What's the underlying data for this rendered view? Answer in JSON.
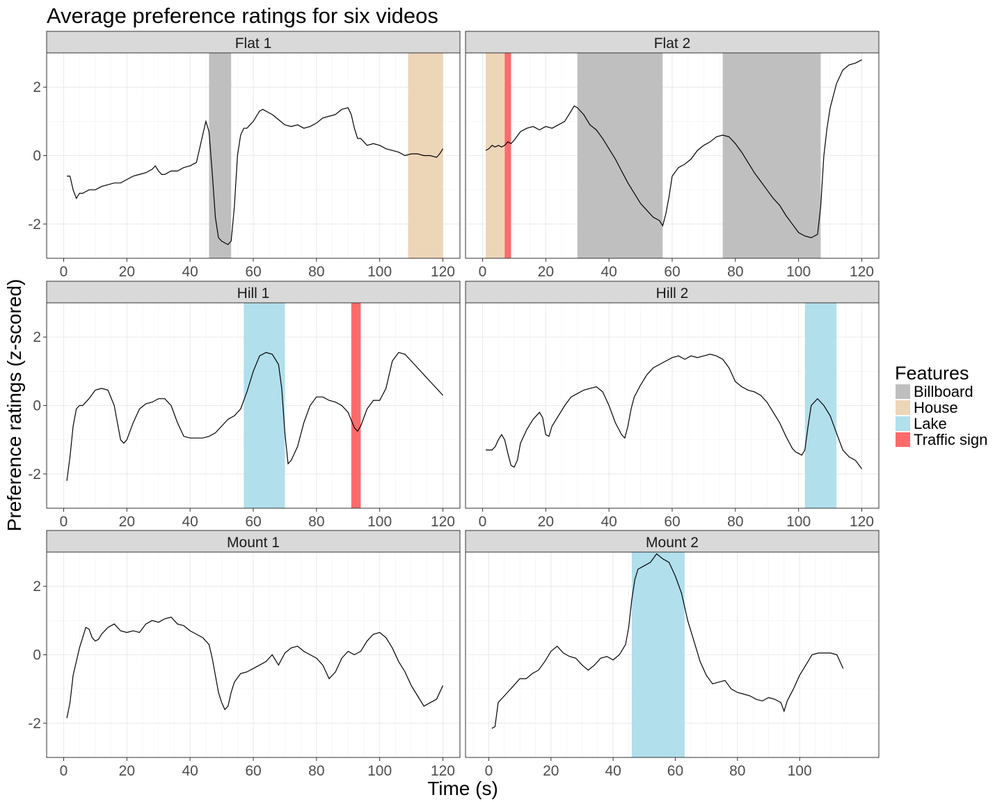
{
  "chart_data": {
    "type": "line",
    "title": "Average preference ratings for six videos",
    "xlabel": "Time (s)",
    "ylabel": "Preference ratings (z-scored)",
    "grid": true,
    "ylim": [
      -3.0,
      3.0
    ],
    "y_ticks": [
      -2,
      0,
      2
    ],
    "legend": {
      "title": "Features",
      "placement": "right",
      "items": [
        {
          "label": "Billboard",
          "color": "#bfbfbf"
        },
        {
          "label": "House",
          "color": "#edd5b8"
        },
        {
          "label": "Lake",
          "color": "#b1dfec"
        },
        {
          "label": "Traffic sign",
          "color": "#ff6b6b"
        }
      ]
    },
    "panels": [
      {
        "name": "Flat 1",
        "xlim": [
          0,
          120
        ],
        "x_ticks": [
          0,
          20,
          40,
          60,
          80,
          100,
          120
        ],
        "features": [
          {
            "feature": "Billboard",
            "start": 46,
            "end": 53
          },
          {
            "feature": "House",
            "start": 109,
            "end": 120
          }
        ],
        "x": [
          1,
          2,
          3,
          4,
          5,
          6,
          8,
          10,
          12,
          14,
          16,
          18,
          20,
          22,
          24,
          26,
          28,
          29,
          30,
          31,
          32,
          34,
          36,
          38,
          40,
          42,
          43,
          44,
          45,
          46,
          47,
          48,
          49,
          50,
          51,
          52,
          53,
          54,
          55,
          56,
          57,
          58,
          60,
          62,
          63,
          64,
          66,
          68,
          70,
          72,
          74,
          76,
          78,
          80,
          82,
          84,
          86,
          88,
          90,
          91,
          92,
          93,
          94,
          96,
          98,
          100,
          102,
          104,
          106,
          108,
          110,
          112,
          114,
          116,
          118,
          119,
          120
        ],
        "y": [
          -0.6,
          -0.6,
          -1.0,
          -1.25,
          -1.1,
          -1.1,
          -1.0,
          -1.0,
          -0.9,
          -0.85,
          -0.8,
          -0.8,
          -0.7,
          -0.6,
          -0.55,
          -0.5,
          -0.4,
          -0.3,
          -0.45,
          -0.55,
          -0.55,
          -0.45,
          -0.45,
          -0.35,
          -0.3,
          -0.2,
          0.2,
          0.6,
          1.0,
          0.7,
          -0.5,
          -1.8,
          -2.4,
          -2.5,
          -2.55,
          -2.6,
          -2.5,
          -1.5,
          0.0,
          0.6,
          0.8,
          0.8,
          1.0,
          1.3,
          1.35,
          1.3,
          1.2,
          1.05,
          0.9,
          0.85,
          0.9,
          0.8,
          0.85,
          0.95,
          1.1,
          1.15,
          1.2,
          1.35,
          1.4,
          1.2,
          0.8,
          0.5,
          0.5,
          0.3,
          0.35,
          0.3,
          0.2,
          0.15,
          0.1,
          0.0,
          0.05,
          0.05,
          0.0,
          0.0,
          -0.05,
          0.05,
          0.2
        ]
      },
      {
        "name": "Flat 2",
        "xlim": [
          0,
          120
        ],
        "x_ticks": [
          0,
          20,
          40,
          60,
          80,
          100,
          120
        ],
        "features": [
          {
            "feature": "House",
            "start": 1,
            "end": 7
          },
          {
            "feature": "Traffic sign",
            "start": 7,
            "end": 9
          },
          {
            "feature": "Billboard",
            "start": 30,
            "end": 57
          },
          {
            "feature": "Billboard",
            "start": 76,
            "end": 107
          }
        ],
        "x": [
          1,
          2,
          3,
          4,
          5,
          6,
          7,
          8,
          9,
          10,
          12,
          14,
          16,
          18,
          20,
          22,
          24,
          26,
          28,
          29,
          30,
          31,
          32,
          34,
          36,
          38,
          40,
          42,
          44,
          46,
          48,
          50,
          52,
          54,
          56,
          57,
          58,
          59,
          60,
          62,
          64,
          66,
          68,
          70,
          72,
          74,
          76,
          78,
          80,
          82,
          84,
          86,
          88,
          90,
          92,
          94,
          96,
          98,
          100,
          102,
          104,
          106,
          107,
          108,
          109,
          110,
          112,
          114,
          116,
          118,
          120
        ],
        "y": [
          0.15,
          0.2,
          0.3,
          0.25,
          0.3,
          0.25,
          0.3,
          0.4,
          0.35,
          0.45,
          0.7,
          0.8,
          0.85,
          0.75,
          0.85,
          0.8,
          0.9,
          1.0,
          1.3,
          1.45,
          1.4,
          1.3,
          1.2,
          0.9,
          0.75,
          0.5,
          0.2,
          -0.1,
          -0.45,
          -0.8,
          -1.1,
          -1.4,
          -1.6,
          -1.8,
          -1.9,
          -2.05,
          -1.7,
          -1.2,
          -0.6,
          -0.35,
          -0.25,
          -0.1,
          0.15,
          0.3,
          0.4,
          0.55,
          0.6,
          0.55,
          0.35,
          0.1,
          -0.2,
          -0.5,
          -0.75,
          -1.0,
          -1.25,
          -1.45,
          -1.75,
          -2.0,
          -2.25,
          -2.35,
          -2.4,
          -2.3,
          -1.5,
          0.0,
          0.8,
          1.4,
          2.1,
          2.5,
          2.65,
          2.7,
          2.8
        ]
      },
      {
        "name": "Hill 1",
        "xlim": [
          0,
          120
        ],
        "x_ticks": [
          0,
          20,
          40,
          60,
          80,
          100,
          120
        ],
        "features": [
          {
            "feature": "Lake",
            "start": 57,
            "end": 70
          },
          {
            "feature": "Traffic sign",
            "start": 91,
            "end": 94
          }
        ],
        "x": [
          1,
          2,
          3,
          4,
          5,
          6,
          8,
          10,
          12,
          14,
          16,
          17,
          18,
          19,
          20,
          22,
          24,
          26,
          28,
          30,
          32,
          34,
          36,
          38,
          40,
          42,
          44,
          46,
          48,
          50,
          52,
          54,
          56,
          58,
          60,
          62,
          64,
          66,
          68,
          69,
          70,
          71,
          72,
          74,
          76,
          78,
          80,
          82,
          84,
          86,
          88,
          90,
          92,
          93,
          94,
          96,
          98,
          100,
          102,
          104,
          106,
          108,
          110,
          112,
          114,
          116,
          118,
          120
        ],
        "y": [
          -2.2,
          -1.5,
          -0.6,
          -0.1,
          0.0,
          0.0,
          0.2,
          0.45,
          0.5,
          0.45,
          0.0,
          -0.5,
          -1.0,
          -1.1,
          -1.0,
          -0.5,
          -0.1,
          0.05,
          0.1,
          0.2,
          0.2,
          0.0,
          -0.5,
          -0.9,
          -0.95,
          -0.95,
          -0.95,
          -0.9,
          -0.8,
          -0.6,
          -0.4,
          -0.3,
          -0.1,
          0.4,
          1.0,
          1.45,
          1.55,
          1.5,
          1.2,
          0.5,
          -0.8,
          -1.7,
          -1.6,
          -1.2,
          -0.5,
          0.0,
          0.25,
          0.25,
          0.15,
          0.1,
          0.0,
          -0.2,
          -0.65,
          -0.75,
          -0.6,
          -0.1,
          0.15,
          0.15,
          0.5,
          1.3,
          1.55,
          1.5,
          1.3,
          1.1,
          0.9,
          0.7,
          0.5,
          0.3
        ]
      },
      {
        "name": "Hill 2",
        "xlim": [
          0,
          120
        ],
        "x_ticks": [
          0,
          20,
          40,
          60,
          80,
          100,
          120
        ],
        "features": [
          {
            "feature": "Lake",
            "start": 102,
            "end": 112
          }
        ],
        "x": [
          1,
          2,
          3,
          4,
          5,
          6,
          7,
          8,
          9,
          10,
          11,
          12,
          14,
          16,
          18,
          19,
          20,
          21,
          22,
          24,
          26,
          28,
          30,
          32,
          34,
          36,
          38,
          40,
          42,
          44,
          45,
          46,
          47,
          48,
          50,
          52,
          54,
          56,
          58,
          60,
          62,
          64,
          66,
          68,
          70,
          72,
          74,
          76,
          78,
          80,
          82,
          84,
          86,
          88,
          90,
          92,
          94,
          96,
          98,
          99,
          100,
          101,
          102,
          103,
          104,
          106,
          108,
          110,
          112,
          114,
          116,
          118,
          120
        ],
        "y": [
          -1.3,
          -1.3,
          -1.3,
          -1.2,
          -1.0,
          -0.85,
          -1.0,
          -1.4,
          -1.75,
          -1.8,
          -1.6,
          -1.1,
          -0.7,
          -0.4,
          -0.2,
          -0.35,
          -0.85,
          -0.9,
          -0.6,
          -0.3,
          0.0,
          0.25,
          0.35,
          0.45,
          0.5,
          0.55,
          0.4,
          0.0,
          -0.5,
          -0.85,
          -0.95,
          -0.6,
          -0.1,
          0.25,
          0.6,
          0.9,
          1.1,
          1.2,
          1.3,
          1.4,
          1.45,
          1.35,
          1.45,
          1.4,
          1.45,
          1.5,
          1.45,
          1.35,
          1.1,
          0.7,
          0.55,
          0.45,
          0.4,
          0.3,
          0.1,
          -0.2,
          -0.5,
          -0.9,
          -1.25,
          -1.35,
          -1.4,
          -1.45,
          -1.3,
          -0.6,
          0.0,
          0.2,
          0.0,
          -0.3,
          -0.8,
          -1.3,
          -1.5,
          -1.6,
          -1.85
        ]
      },
      {
        "name": "Mount 1",
        "xlim": [
          0,
          120
        ],
        "x_ticks": [
          0,
          20,
          40,
          60,
          80,
          100,
          120
        ],
        "features": [],
        "x": [
          1,
          2,
          3,
          4,
          5,
          6,
          7,
          8,
          9,
          10,
          11,
          12,
          14,
          16,
          18,
          20,
          22,
          24,
          26,
          28,
          30,
          32,
          34,
          36,
          38,
          40,
          42,
          44,
          46,
          47,
          48,
          49,
          50,
          51,
          52,
          53,
          54,
          56,
          58,
          60,
          62,
          64,
          66,
          68,
          70,
          72,
          74,
          76,
          78,
          80,
          82,
          84,
          86,
          88,
          90,
          92,
          94,
          96,
          98,
          100,
          102,
          104,
          106,
          108,
          110,
          112,
          114,
          116,
          118,
          120
        ],
        "y": [
          -1.85,
          -1.4,
          -0.6,
          -0.2,
          0.2,
          0.5,
          0.8,
          0.75,
          0.5,
          0.4,
          0.45,
          0.6,
          0.8,
          0.9,
          0.7,
          0.65,
          0.7,
          0.65,
          0.9,
          1.0,
          0.95,
          1.05,
          1.1,
          0.9,
          0.85,
          0.7,
          0.6,
          0.5,
          0.3,
          -0.1,
          -0.6,
          -1.1,
          -1.4,
          -1.6,
          -1.5,
          -1.1,
          -0.8,
          -0.55,
          -0.5,
          -0.4,
          -0.3,
          -0.2,
          0.0,
          -0.3,
          0.05,
          0.2,
          0.25,
          0.1,
          0.0,
          -0.1,
          -0.3,
          -0.7,
          -0.5,
          -0.1,
          0.1,
          0.0,
          0.1,
          0.4,
          0.6,
          0.65,
          0.5,
          0.2,
          -0.2,
          -0.5,
          -0.9,
          -1.2,
          -1.5,
          -1.4,
          -1.3,
          -0.9
        ]
      },
      {
        "name": "Mount 2",
        "xlim": [
          -2,
          120
        ],
        "x_ticks": [
          0,
          20,
          40,
          60,
          80,
          100
        ],
        "features": [
          {
            "feature": "Lake",
            "start": 46,
            "end": 63
          }
        ],
        "x": [
          1,
          2,
          3,
          4,
          5,
          6,
          8,
          10,
          12,
          14,
          16,
          18,
          20,
          22,
          24,
          26,
          28,
          30,
          32,
          34,
          36,
          38,
          40,
          42,
          44,
          45,
          46,
          47,
          48,
          50,
          52,
          54,
          56,
          58,
          60,
          62,
          63,
          64,
          66,
          68,
          70,
          72,
          74,
          76,
          78,
          80,
          82,
          84,
          86,
          88,
          90,
          92,
          94,
          95,
          96,
          98,
          100,
          102,
          104,
          106,
          108,
          110,
          112,
          114
        ],
        "y": [
          -2.15,
          -2.1,
          -1.4,
          -1.3,
          -1.2,
          -1.1,
          -0.9,
          -0.7,
          -0.7,
          -0.55,
          -0.45,
          -0.2,
          0.1,
          0.25,
          0.05,
          -0.05,
          -0.1,
          -0.3,
          -0.45,
          -0.3,
          -0.1,
          -0.05,
          -0.15,
          0.0,
          0.3,
          0.8,
          1.6,
          2.2,
          2.5,
          2.6,
          2.7,
          2.95,
          2.8,
          2.7,
          2.3,
          1.8,
          1.4,
          1.0,
          0.4,
          -0.2,
          -0.6,
          -0.85,
          -0.8,
          -0.75,
          -1.0,
          -1.1,
          -1.15,
          -1.2,
          -1.3,
          -1.35,
          -1.25,
          -1.3,
          -1.4,
          -1.65,
          -1.35,
          -1.0,
          -0.6,
          -0.3,
          0.0,
          0.05,
          0.05,
          0.05,
          0.0,
          -0.4
        ]
      }
    ]
  }
}
